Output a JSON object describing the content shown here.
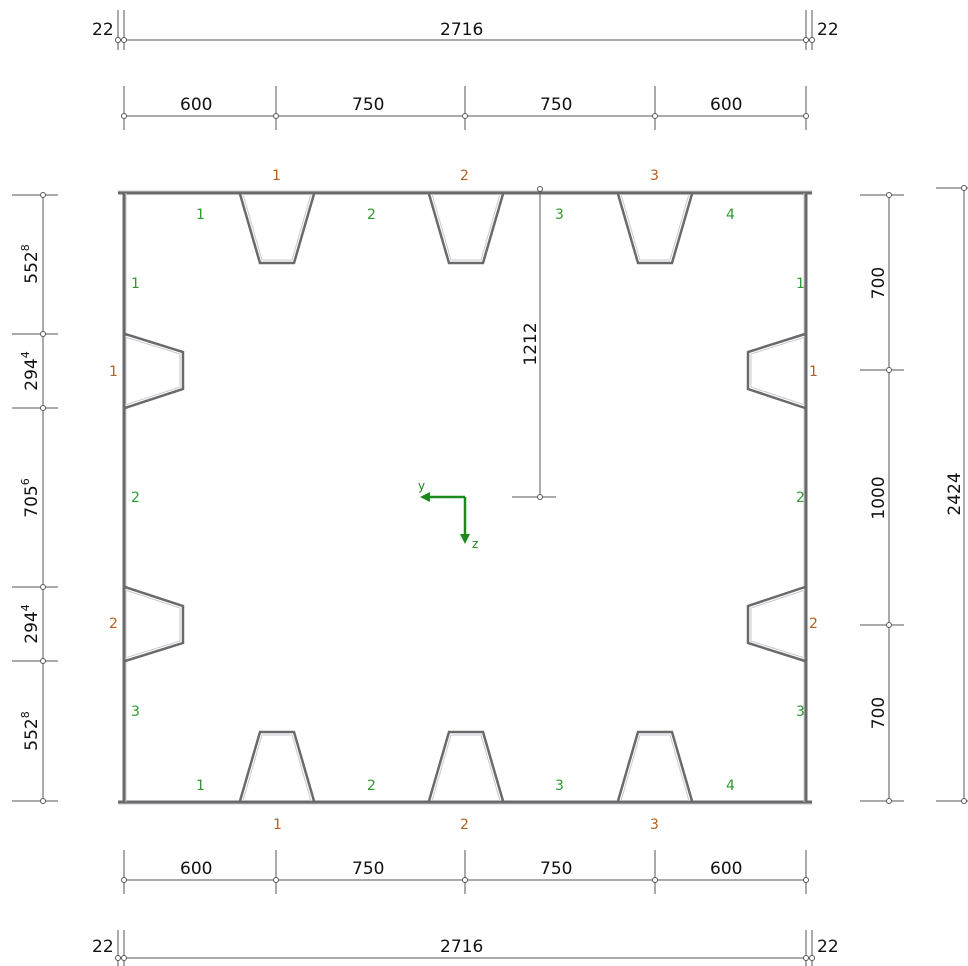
{
  "dimensions": {
    "top_overall": {
      "left_offset": "22",
      "total": "2716",
      "right_offset": "22"
    },
    "top_segments": [
      "600",
      "750",
      "750",
      "600"
    ],
    "bottom_segments": [
      "600",
      "750",
      "750",
      "600"
    ],
    "bottom_overall": {
      "left_offset": "22",
      "total": "2716",
      "right_offset": "22"
    },
    "left_segments": [
      {
        "main": "552",
        "sup": "8"
      },
      {
        "main": "294",
        "sup": "4"
      },
      {
        "main": "705",
        "sup": "6"
      },
      {
        "main": "294",
        "sup": "4"
      },
      {
        "main": "552",
        "sup": "8"
      }
    ],
    "right_segments": [
      "700",
      "1000",
      "700"
    ],
    "right_overall": "2424",
    "centroid_offset": "1212"
  },
  "stiffener_labels": {
    "top": [
      "1",
      "2",
      "3"
    ],
    "bottom": [
      "1",
      "2",
      "3"
    ],
    "left": [
      "1",
      "2"
    ],
    "right": [
      "1",
      "2"
    ]
  },
  "panel_labels": {
    "top": [
      "1",
      "2",
      "3",
      "4"
    ],
    "bottom": [
      "1",
      "2",
      "3",
      "4"
    ],
    "left": [
      "1",
      "2",
      "3"
    ],
    "right": [
      "1",
      "2",
      "3"
    ]
  },
  "axes": {
    "y": "y",
    "z": "z"
  },
  "colors": {
    "stiffener_label": "#b5601f",
    "panel_label": "#2e9a2e",
    "axis": "#1d8a1d",
    "plate": "#6a6a6a"
  }
}
